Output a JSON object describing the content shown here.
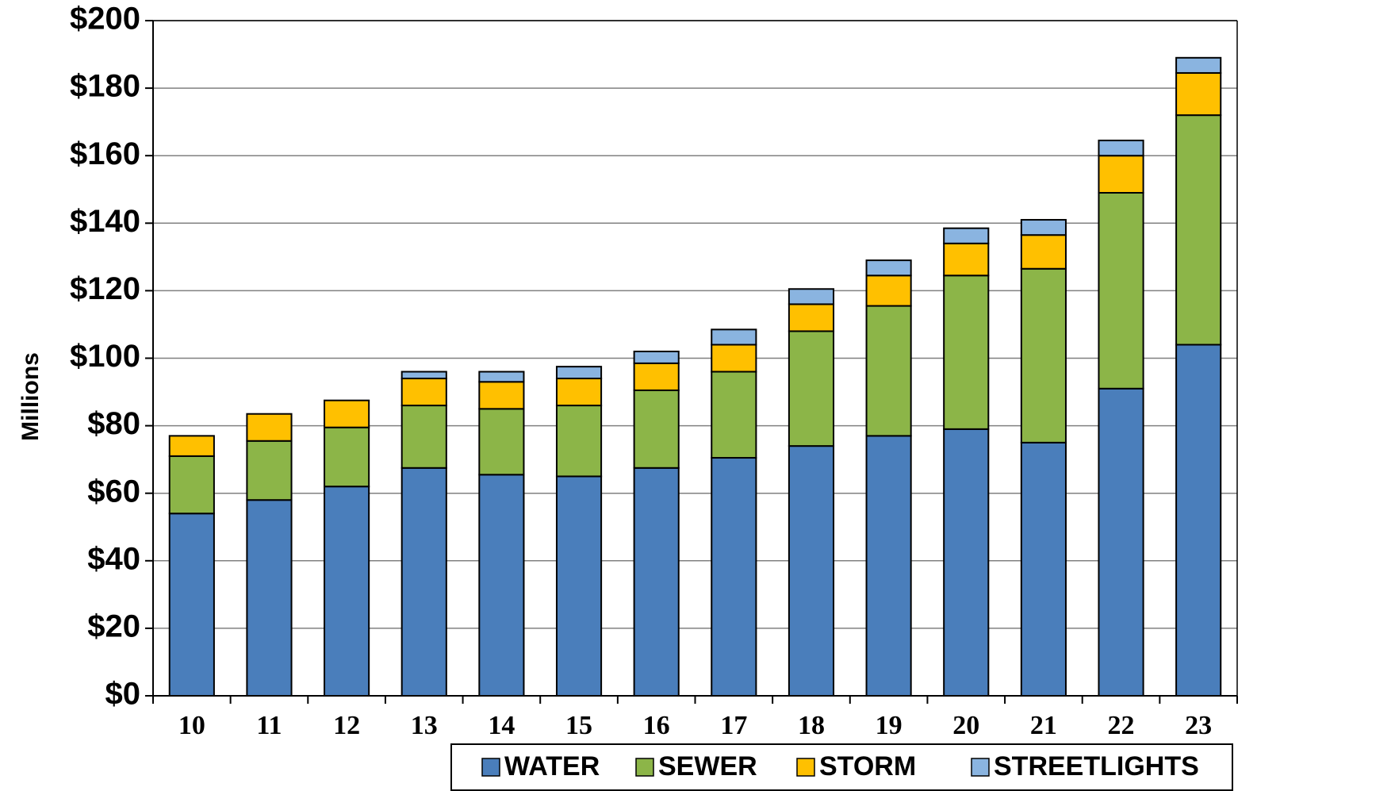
{
  "chart_data": {
    "type": "bar",
    "stacked": true,
    "categories": [
      "10",
      "11",
      "12",
      "13",
      "14",
      "15",
      "16",
      "17",
      "18",
      "19",
      "20",
      "21",
      "22",
      "23"
    ],
    "series": [
      {
        "name": "WATER",
        "color": "#4a7ebb",
        "values": [
          54,
          58,
          62,
          67.5,
          65.5,
          65,
          67.5,
          70.5,
          74,
          77,
          79,
          75,
          91,
          104
        ]
      },
      {
        "name": "SEWER",
        "color": "#8cb548",
        "values": [
          17,
          17.5,
          17.5,
          18.5,
          19.5,
          21,
          23,
          25.5,
          34,
          38.5,
          45.5,
          51.5,
          58,
          68
        ]
      },
      {
        "name": "STORM",
        "color": "#ffc000",
        "values": [
          6,
          8,
          8,
          8,
          8,
          8,
          8,
          8,
          8,
          9,
          9.5,
          10,
          11,
          12.5
        ]
      },
      {
        "name": "STREETLIGHTS",
        "color": "#8ab4e0",
        "values": [
          0,
          0,
          0,
          2,
          3,
          3.5,
          3.5,
          4.5,
          4.5,
          4.5,
          4.5,
          4.5,
          4.5,
          4.5
        ]
      }
    ],
    "ylim": [
      0,
      200
    ],
    "ytick_labels": [
      "$0",
      "$20",
      "$40",
      "$60",
      "$80",
      "$100",
      "$120",
      "$140",
      "$160",
      "$180",
      "$200"
    ],
    "ylabel": "Millions",
    "xlabel": "",
    "title": "",
    "grid": true,
    "legend_position": "bottom"
  }
}
